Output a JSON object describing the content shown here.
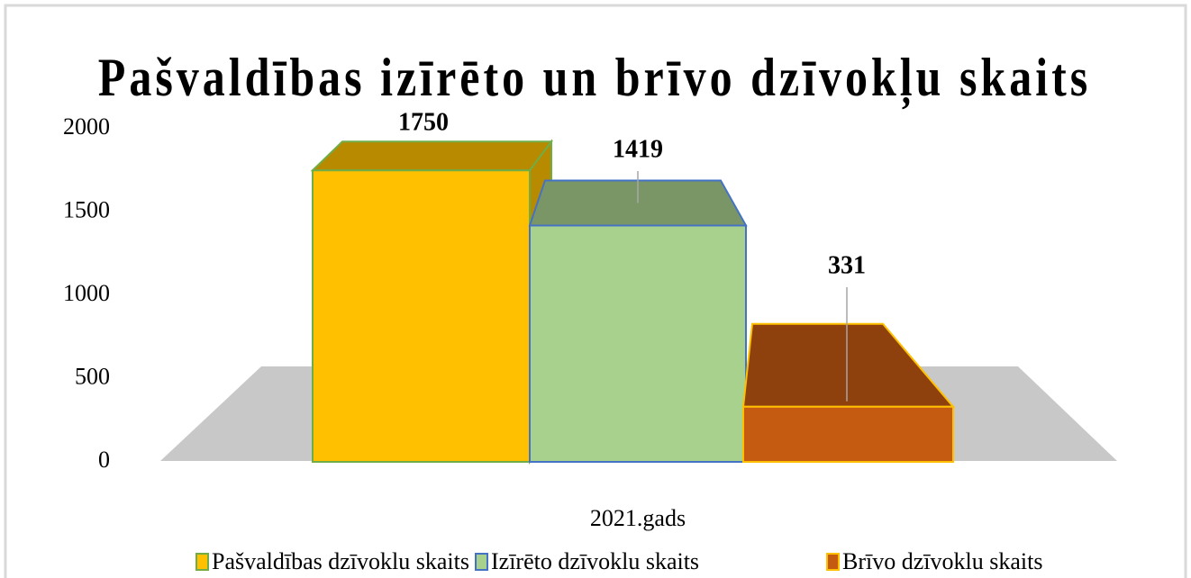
{
  "chart_data": {
    "type": "bar3d",
    "title": "Pašvaldības izīrēto un brīvo dzīvokļu skaits",
    "xlabel": "2021.gads",
    "categories": [
      "2021.gads"
    ],
    "series": [
      {
        "name": "Pašvaldības dzīvoklu skaits",
        "color": "#ffc000",
        "edge": "#70ad47",
        "values": [
          1750
        ]
      },
      {
        "name": "Izīrēto dzīvoklu skaits",
        "color": "#a9d18e",
        "edge": "#4472c4",
        "values": [
          1419
        ]
      },
      {
        "name": "Brīvo dzīvoklu skaits",
        "color": "#c55a11",
        "edge": "#ffc000",
        "values": [
          331
        ]
      }
    ],
    "ylim": [
      0,
      2000
    ],
    "yticks": [
      0,
      500,
      1000,
      1500,
      2000
    ],
    "legend": "bottom"
  }
}
